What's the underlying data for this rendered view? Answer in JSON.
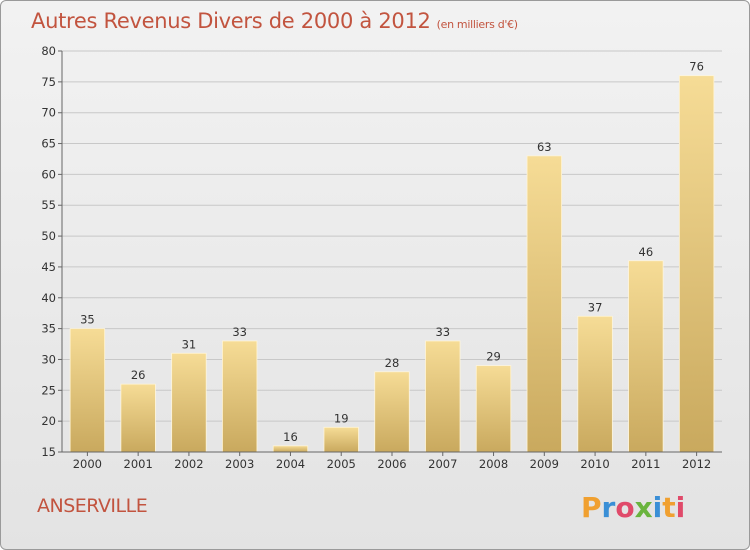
{
  "header": {
    "title": "Autres Revenus Divers de 2000 à 2012",
    "subtitle": "(en milliers d'€)"
  },
  "footer": {
    "town": "ANSERVILLE",
    "brand_letters": [
      "P",
      "r",
      "o",
      "x",
      "i",
      "t",
      "i"
    ]
  },
  "colors": {
    "title": "#c2543f",
    "bar_top": "#f6dc96",
    "bar_bottom": "#c9a95e",
    "grid": "#c8c8c8"
  },
  "chart_data": {
    "type": "bar",
    "title": "Autres Revenus Divers de 2000 à 2012",
    "subtitle": "(en milliers d'€)",
    "categories": [
      "2000",
      "2001",
      "2002",
      "2003",
      "2004",
      "2005",
      "2006",
      "2007",
      "2008",
      "2009",
      "2010",
      "2011",
      "2012"
    ],
    "values": [
      35,
      26,
      31,
      33,
      16,
      19,
      28,
      33,
      29,
      63,
      37,
      46,
      76
    ],
    "ylim": [
      15,
      80
    ],
    "yticks": [
      15,
      20,
      25,
      30,
      35,
      40,
      45,
      50,
      55,
      60,
      65,
      70,
      75,
      80
    ],
    "grid": true,
    "xlabel": "",
    "ylabel": ""
  }
}
